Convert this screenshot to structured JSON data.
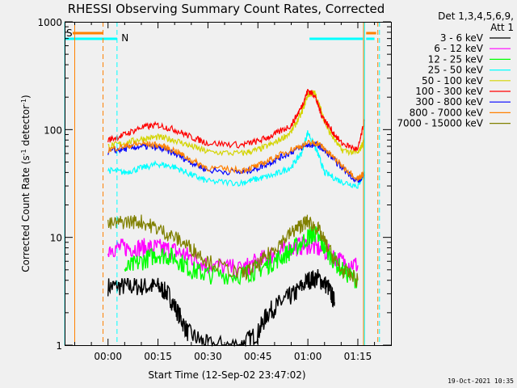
{
  "chart_data": {
    "type": "line",
    "title": "RHESSI Observing Summary Count Rates, Corrected",
    "xlabel": "Start Time (12-Sep-02 23:47:02)",
    "ylabel_parts": [
      "Corrected Count Rate (s",
      "-1",
      " detector",
      "-1",
      ")"
    ],
    "ylabel": "Corrected Count Rate (s-1 detector-1)",
    "yscale": "log",
    "ylim": [
      1,
      1000
    ],
    "y_ticks": [
      {
        "value": 1,
        "label": "1"
      },
      {
        "value": 10,
        "label": "10"
      },
      {
        "value": 100,
        "label": "100"
      },
      {
        "value": 1000,
        "label": "1000"
      }
    ],
    "xlim_minutes": [
      -13.03,
      84.95
    ],
    "x_ticks": [
      {
        "minute": 0,
        "label": "00:00"
      },
      {
        "minute": 15,
        "label": "00:15"
      },
      {
        "minute": 30,
        "label": "00:30"
      },
      {
        "minute": 45,
        "label": "00:45"
      },
      {
        "minute": 60,
        "label": "01:00"
      },
      {
        "minute": 75,
        "label": "01:15"
      }
    ],
    "legend_header": [
      "Det 1,3,4,5,6,9,",
      "Att 1"
    ],
    "series": [
      {
        "name": "3 - 6 keV",
        "color": "#000000",
        "x": [
          0,
          5,
          10,
          15,
          18,
          21,
          24,
          30,
          40,
          45,
          48,
          52,
          56,
          60,
          63,
          66,
          68
        ],
        "y": [
          3.5,
          3.5,
          3.5,
          3.5,
          3.0,
          2.0,
          1.3,
          1.0,
          1.0,
          1.3,
          2.0,
          2.5,
          3.0,
          4.0,
          4.2,
          3.5,
          2.5
        ]
      },
      {
        "name": "6 - 12 keV",
        "color": "#ff00ff",
        "x": [
          0,
          5,
          10,
          15,
          20,
          25,
          30,
          40,
          45,
          50,
          55,
          60,
          65,
          70,
          75
        ],
        "y": [
          8.0,
          8.0,
          8.0,
          8.0,
          7.5,
          6.5,
          5.5,
          5.0,
          6.0,
          7.0,
          8.0,
          8.5,
          7.5,
          6.0,
          5.5
        ]
      },
      {
        "name": "12 - 25 keV",
        "color": "#00ff00",
        "x": [
          5,
          10,
          15,
          20,
          25,
          30,
          40,
          45,
          50,
          55,
          60,
          62,
          65,
          70,
          75
        ],
        "y": [
          5.0,
          6.0,
          7.0,
          6.5,
          5.0,
          4.5,
          4.5,
          5.0,
          6.0,
          7.5,
          10.0,
          11.0,
          8.0,
          5.0,
          4.0
        ]
      },
      {
        "name": "25 - 50 keV",
        "color": "#00ffff",
        "x": [
          0,
          5,
          10,
          15,
          20,
          25,
          30,
          40,
          45,
          50,
          55,
          58,
          60,
          63,
          65,
          70,
          75,
          77
        ],
        "y": [
          42,
          40,
          44,
          48,
          45,
          38,
          33,
          32,
          35,
          38,
          45,
          60,
          95,
          60,
          40,
          33,
          30,
          40
        ]
      },
      {
        "name": "50 - 100 keV",
        "color": "#d4d400",
        "x": [
          0,
          5,
          10,
          15,
          20,
          25,
          30,
          40,
          45,
          50,
          55,
          58,
          60,
          62,
          64,
          66,
          70,
          75,
          77
        ],
        "y": [
          70,
          75,
          82,
          85,
          80,
          70,
          62,
          60,
          65,
          75,
          95,
          140,
          210,
          220,
          150,
          100,
          65,
          60,
          80
        ]
      },
      {
        "name": "100 - 300 keV",
        "color": "#ff0000",
        "x": [
          0,
          5,
          10,
          15,
          20,
          25,
          30,
          40,
          45,
          50,
          55,
          58,
          60,
          62,
          64,
          66,
          70,
          75,
          77
        ],
        "y": [
          80,
          90,
          105,
          110,
          100,
          85,
          75,
          72,
          78,
          90,
          110,
          160,
          230,
          210,
          140,
          110,
          75,
          65,
          120
        ]
      },
      {
        "name": "300 - 800 keV",
        "color": "#0000ff",
        "x": [
          0,
          5,
          10,
          15,
          20,
          25,
          30,
          40,
          45,
          50,
          55,
          60,
          63,
          66,
          70,
          75,
          77
        ],
        "y": [
          62,
          66,
          70,
          68,
          60,
          50,
          42,
          40,
          44,
          52,
          62,
          72,
          72,
          60,
          45,
          33,
          38
        ]
      },
      {
        "name": "800 - 7000 keV",
        "color": "#ff8000",
        "x": [
          0,
          5,
          10,
          15,
          20,
          25,
          30,
          40,
          45,
          50,
          55,
          60,
          63,
          66,
          70,
          75,
          77
        ],
        "y": [
          65,
          70,
          74,
          72,
          64,
          52,
          44,
          42,
          46,
          55,
          65,
          75,
          75,
          62,
          47,
          35,
          40
        ]
      },
      {
        "name": "7000 - 15000 keV",
        "color": "#808000",
        "x": [
          0,
          5,
          10,
          15,
          20,
          25,
          30,
          40,
          45,
          50,
          55,
          58,
          60,
          63,
          66,
          70,
          75
        ],
        "y": [
          13.0,
          14.0,
          14.0,
          12.0,
          10.0,
          8.0,
          6.0,
          4.5,
          5.5,
          8.0,
          11.0,
          13.0,
          14.0,
          12.0,
          8.0,
          5.0,
          4.0
        ]
      }
    ],
    "markers": [
      {
        "label": "S",
        "color": "#ff8000"
      },
      {
        "label": "N",
        "color": "#00ffff"
      }
    ],
    "grid": false,
    "legend_position": "right"
  },
  "footer": {
    "timestamp": "19-Oct-2021 10:35"
  }
}
